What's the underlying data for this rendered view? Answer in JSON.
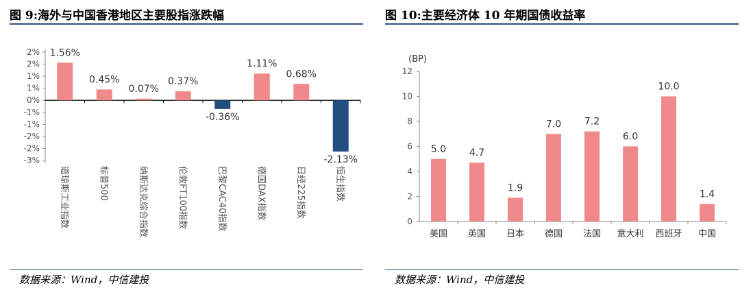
{
  "left_panel": {
    "title": "图 9:海外与中国香港地区主要股指涨跌幅",
    "source": "数据来源：Wind，中信建投"
  },
  "right_panel": {
    "title": "图 10:主要经济体 10 年期国债收益率",
    "source": "数据来源：Wind，中信建投"
  },
  "colors": {
    "positive": "#f08a8a",
    "negative": "#234f80",
    "rule": "#2f4f7f",
    "tick_text": "#555555"
  },
  "chart_data": [
    {
      "type": "bar",
      "categories": [
        "道琼斯工业指数",
        "标普500",
        "纳斯达克综合指数",
        "伦敦FT100指数",
        "巴黎CAC40指数",
        "德国DAX指数",
        "日经225指数",
        "恒生指数"
      ],
      "values": [
        1.56,
        0.45,
        0.07,
        0.37,
        -0.36,
        1.11,
        0.68,
        -2.13
      ],
      "data_labels": [
        "1.56%",
        "0.45%",
        "0.07%",
        "0.37%",
        "-0.36%",
        "1.11%",
        "0.68%",
        "-2.13%"
      ],
      "y_ticks": [
        "2%",
        "2%",
        "1%",
        "1%",
        "0%",
        "-1%",
        "-1%",
        "-2%",
        "-2%",
        "-3%"
      ],
      "ylim": [
        -2.5,
        2.0
      ],
      "unit": "%",
      "grid": false
    },
    {
      "type": "bar",
      "categories": [
        "美国",
        "英国",
        "日本",
        "德国",
        "法国",
        "意大利",
        "西班牙",
        "中国"
      ],
      "values": [
        5.0,
        4.7,
        1.9,
        7.0,
        7.2,
        6.0,
        10.0,
        1.4
      ],
      "data_labels": [
        "5.0",
        "4.7",
        "1.9",
        "7.0",
        "7.2",
        "6.0",
        "10.0",
        "1.4"
      ],
      "y_ticks": [
        "0",
        "2",
        "4",
        "6",
        "8",
        "10",
        "12"
      ],
      "ylim": [
        0,
        12
      ],
      "unit_label": "(BP)",
      "grid": false
    }
  ]
}
